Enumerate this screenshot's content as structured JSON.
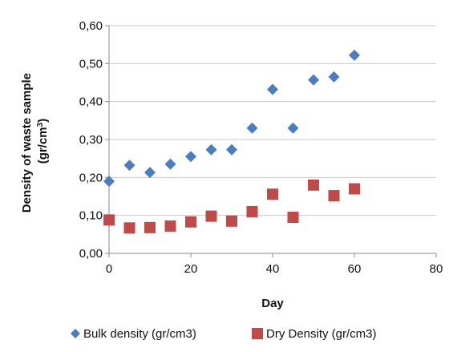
{
  "chart_data": {
    "type": "scatter",
    "title": "",
    "xlabel": "Day",
    "ylabel_line1": "Density  of waste sample",
    "ylabel_line2": "(gr/cm",
    "ylabel_sup": "3",
    "ylabel_close": ")",
    "xlim": [
      0,
      80
    ],
    "ylim": [
      0,
      0.6
    ],
    "x_ticks": [
      0,
      20,
      40,
      60,
      80
    ],
    "x_tick_labels": [
      "0",
      "20",
      "40",
      "60",
      "80"
    ],
    "y_ticks": [
      0,
      0.1,
      0.2,
      0.3,
      0.4,
      0.5,
      0.6
    ],
    "y_tick_labels": [
      "0,00",
      "0,10",
      "0,20",
      "0,30",
      "0,40",
      "0,50",
      "0,60"
    ],
    "grid": "horizontal",
    "legend_position": "bottom",
    "series": [
      {
        "name": "Bulk density (gr/cm3)",
        "marker": "diamond",
        "color": "#4a7ebf",
        "points": [
          [
            0,
            0.19
          ],
          [
            5,
            0.232
          ],
          [
            10,
            0.213
          ],
          [
            15,
            0.235
          ],
          [
            20,
            0.255
          ],
          [
            25,
            0.273
          ],
          [
            30,
            0.273
          ],
          [
            35,
            0.33
          ],
          [
            40,
            0.432
          ],
          [
            45,
            0.33
          ],
          [
            50,
            0.457
          ],
          [
            55,
            0.465
          ],
          [
            60,
            0.522
          ]
        ]
      },
      {
        "name": "Dry Density (gr/cm3)",
        "marker": "square",
        "color": "#be4b48",
        "points": [
          [
            0,
            0.088
          ],
          [
            5,
            0.067
          ],
          [
            10,
            0.068
          ],
          [
            15,
            0.072
          ],
          [
            20,
            0.083
          ],
          [
            25,
            0.098
          ],
          [
            30,
            0.085
          ],
          [
            35,
            0.11
          ],
          [
            40,
            0.156
          ],
          [
            45,
            0.095
          ],
          [
            50,
            0.18
          ],
          [
            55,
            0.152
          ],
          [
            60,
            0.17
          ]
        ]
      }
    ]
  }
}
